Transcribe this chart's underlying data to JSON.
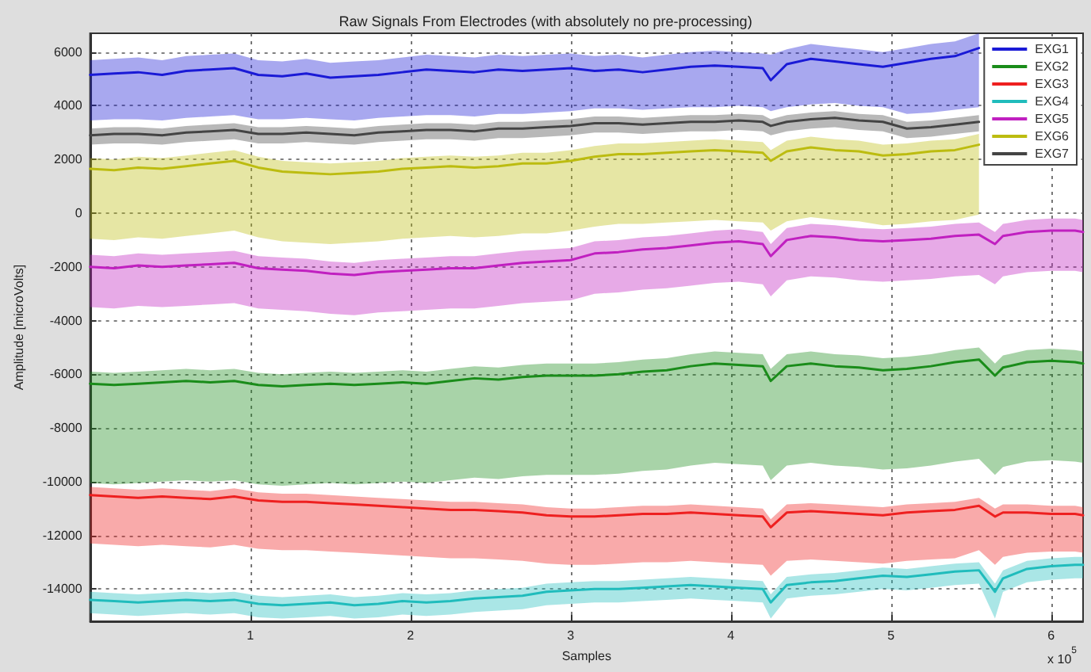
{
  "chart_data": {
    "type": "line",
    "title": "Raw Signals From Electrodes (with absolutely no pre-processing)",
    "xlabel": "Samples",
    "ylabel": "Amplitude [microVolts]",
    "annotations": [
      "x 10$^{5}$"
    ],
    "xlim": [
      0,
      6.2
    ],
    "xticks": [
      1,
      2,
      3,
      4,
      5,
      6
    ],
    "ylim": [
      -15200,
      6700
    ],
    "yticks": [
      -14000,
      -12000,
      -10000,
      -8000,
      -6000,
      -4000,
      -2000,
      0,
      2000,
      4000,
      6000
    ],
    "grid": true,
    "legend": "top right",
    "x": [
      0,
      0.15,
      0.3,
      0.45,
      0.6,
      0.75,
      0.9,
      1.05,
      1.2,
      1.35,
      1.5,
      1.65,
      1.8,
      1.95,
      2.1,
      2.25,
      2.4,
      2.55,
      2.7,
      2.85,
      3,
      3.15,
      3.3,
      3.45,
      3.6,
      3.75,
      3.9,
      4.05,
      4.2,
      4.25,
      4.35,
      4.5,
      4.65,
      4.8,
      4.95,
      5.1,
      5.25,
      5.4,
      5.55,
      5.65,
      5.7,
      5.85,
      6,
      6.15,
      6.2
    ],
    "series": [
      {
        "name": "EXG1",
        "color": "#1a1ad6",
        "values": [
          5150,
          5200,
          5250,
          5150,
          5300,
          5350,
          5400,
          5150,
          5100,
          5200,
          5050,
          5100,
          5150,
          5250,
          5350,
          5300,
          5250,
          5350,
          5300,
          5350,
          5400,
          5300,
          5350,
          5250,
          5350,
          5450,
          5500,
          5450,
          5400,
          4950,
          5550,
          5750,
          5650,
          5550,
          5450,
          5600,
          5750,
          5850,
          6150,
          null,
          null,
          null,
          null,
          null,
          null
        ],
        "upper": [
          5700,
          5750,
          5800,
          5700,
          5850,
          5900,
          5950,
          5700,
          5650,
          5750,
          5600,
          5650,
          5700,
          5800,
          5900,
          5850,
          5800,
          5900,
          5850,
          5900,
          5950,
          5850,
          5900,
          5800,
          5900,
          6000,
          6050,
          6000,
          5950,
          5900,
          6100,
          6300,
          6200,
          6100,
          6000,
          6150,
          6300,
          6400,
          6700,
          null,
          null,
          null,
          null,
          null,
          null
        ],
        "lower": [
          3450,
          3500,
          3500,
          3450,
          3550,
          3600,
          3650,
          3500,
          3500,
          3550,
          3500,
          3450,
          3550,
          3600,
          3650,
          3650,
          3600,
          3700,
          3700,
          3750,
          3800,
          3900,
          3900,
          3850,
          3900,
          3950,
          3950,
          4000,
          3950,
          3800,
          3950,
          4050,
          4100,
          4000,
          3950,
          3700,
          3750,
          3850,
          3950,
          null,
          null,
          null,
          null,
          null,
          null
        ]
      },
      {
        "name": "EXG2",
        "color": "#1a8c1a",
        "values": [
          -6350,
          -6400,
          -6350,
          -6300,
          -6250,
          -6300,
          -6250,
          -6400,
          -6450,
          -6400,
          -6350,
          -6400,
          -6350,
          -6300,
          -6350,
          -6250,
          -6150,
          -6200,
          -6100,
          -6050,
          -6050,
          -6050,
          -6000,
          -5900,
          -5850,
          -5700,
          -5600,
          -5650,
          -5700,
          -6250,
          -5700,
          -5600,
          -5700,
          -5750,
          -5850,
          -5800,
          -5700,
          -5550,
          -5450,
          -6050,
          -5750,
          -5550,
          -5500,
          -5550,
          -5600
        ],
        "upper": [
          -5900,
          -5950,
          -5900,
          -5850,
          -5800,
          -5850,
          -5800,
          -5950,
          -6000,
          -5950,
          -5900,
          -5950,
          -5900,
          -5850,
          -5900,
          -5800,
          -5700,
          -5750,
          -5650,
          -5600,
          -5600,
          -5600,
          -5550,
          -5450,
          -5400,
          -5250,
          -5150,
          -5200,
          -5250,
          -5800,
          -5250,
          -5150,
          -5250,
          -5300,
          -5400,
          -5350,
          -5250,
          -5100,
          -5000,
          -5600,
          -5300,
          -5100,
          -5050,
          -5100,
          -5150
        ],
        "lower": [
          -10050,
          -10100,
          -10050,
          -10000,
          -9950,
          -10000,
          -9950,
          -10100,
          -10150,
          -10100,
          -10050,
          -10100,
          -10050,
          -10000,
          -10050,
          -9950,
          -9850,
          -9900,
          -9800,
          -9750,
          -9750,
          -9750,
          -9700,
          -9600,
          -9550,
          -9400,
          -9300,
          -9350,
          -9400,
          -9950,
          -9400,
          -9300,
          -9400,
          -9450,
          -9550,
          -9500,
          -9400,
          -9250,
          -9150,
          -9750,
          -9450,
          -9250,
          -9200,
          -9250,
          -9300
        ]
      },
      {
        "name": "EXG3",
        "color": "#ee2020",
        "values": [
          -10500,
          -10550,
          -10600,
          -10550,
          -10600,
          -10650,
          -10550,
          -10700,
          -10750,
          -10750,
          -10800,
          -10850,
          -10900,
          -10950,
          -11000,
          -11050,
          -11050,
          -11100,
          -11150,
          -11250,
          -11300,
          -11300,
          -11250,
          -11200,
          -11200,
          -11150,
          -11200,
          -11250,
          -11300,
          -11700,
          -11150,
          -11100,
          -11150,
          -11200,
          -11250,
          -11150,
          -11100,
          -11050,
          -10900,
          -11300,
          -11150,
          -11150,
          -11200,
          -11200,
          -11250
        ],
        "upper": [
          -10200,
          -10250,
          -10300,
          -10250,
          -10300,
          -10350,
          -10250,
          -10400,
          -10450,
          -10450,
          -10500,
          -10550,
          -10600,
          -10650,
          -10700,
          -10750,
          -10750,
          -10800,
          -10850,
          -10950,
          -11000,
          -11000,
          -10950,
          -10900,
          -10900,
          -10850,
          -10900,
          -10950,
          -11000,
          -11400,
          -10850,
          -10800,
          -10850,
          -10900,
          -10950,
          -10850,
          -10800,
          -10750,
          -10600,
          -11000,
          -10850,
          -10850,
          -10900,
          -10900,
          -10950
        ],
        "lower": [
          -12300,
          -12350,
          -12400,
          -12350,
          -12400,
          -12450,
          -12350,
          -12500,
          -12550,
          -12550,
          -12600,
          -12650,
          -12700,
          -12750,
          -12800,
          -12850,
          -12850,
          -12900,
          -12950,
          -13050,
          -13100,
          -13100,
          -13050,
          -13000,
          -13000,
          -12950,
          -13000,
          -13050,
          -13100,
          -13500,
          -12950,
          -12900,
          -12950,
          -13000,
          -13050,
          -12950,
          -12900,
          -12850,
          -12550,
          -13100,
          -12800,
          -12650,
          -12600,
          -12600,
          -12650
        ]
      },
      {
        "name": "EXG4",
        "color": "#20bcbc",
        "values": [
          -14400,
          -14450,
          -14500,
          -14450,
          -14400,
          -14450,
          -14400,
          -14550,
          -14600,
          -14550,
          -14500,
          -14600,
          -14550,
          -14450,
          -14500,
          -14450,
          -14350,
          -14300,
          -14250,
          -14100,
          -14050,
          -14000,
          -14000,
          -13950,
          -13900,
          -13850,
          -13900,
          -13950,
          -14000,
          -14500,
          -13850,
          -13750,
          -13700,
          -13600,
          -13500,
          -13550,
          -13450,
          -13350,
          -13300,
          -14100,
          -13600,
          -13250,
          -13150,
          -13100,
          -13100
        ],
        "upper": [
          -14100,
          -14150,
          -14200,
          -14150,
          -14100,
          -14150,
          -14100,
          -14250,
          -14300,
          -14250,
          -14200,
          -14300,
          -14250,
          -14150,
          -14200,
          -14150,
          -14050,
          -14000,
          -13950,
          -13800,
          -13750,
          -13700,
          -13700,
          -13650,
          -13600,
          -13550,
          -13600,
          -13650,
          -13700,
          -14200,
          -13550,
          -13450,
          -13400,
          -13300,
          -13200,
          -13250,
          -13150,
          -13050,
          -13000,
          -13800,
          -13300,
          -12950,
          -12850,
          -12800,
          -12800
        ],
        "lower": [
          -14900,
          -14950,
          -15000,
          -14950,
          -14900,
          -14950,
          -14900,
          -15050,
          -15100,
          -15050,
          -15000,
          -15100,
          -15050,
          -14950,
          -15000,
          -14950,
          -14850,
          -14800,
          -14750,
          -14600,
          -14550,
          -14500,
          -14500,
          -14450,
          -14400,
          -14350,
          -14400,
          -14450,
          -14500,
          -15100,
          -14350,
          -14250,
          -14200,
          -14100,
          -14000,
          -14050,
          -13950,
          -13850,
          -13800,
          -15100,
          -14100,
          -13750,
          -13650,
          -13600,
          -13600
        ]
      },
      {
        "name": "EXG5",
        "color": "#c020c0",
        "values": [
          -2000,
          -2050,
          -1950,
          -2000,
          -1950,
          -1900,
          -1850,
          -2050,
          -2100,
          -2150,
          -2250,
          -2300,
          -2200,
          -2150,
          -2100,
          -2050,
          -2050,
          -1950,
          -1850,
          -1800,
          -1750,
          -1500,
          -1450,
          -1350,
          -1300,
          -1200,
          -1100,
          -1050,
          -1150,
          -1600,
          -1000,
          -850,
          -900,
          -1000,
          -1050,
          -1000,
          -950,
          -850,
          -800,
          -1150,
          -850,
          -700,
          -650,
          -650,
          -700
        ],
        "upper": [
          -1550,
          -1600,
          -1500,
          -1550,
          -1500,
          -1450,
          -1400,
          -1600,
          -1650,
          -1700,
          -1800,
          -1850,
          -1750,
          -1700,
          -1650,
          -1600,
          -1600,
          -1500,
          -1400,
          -1350,
          -1300,
          -1050,
          -1000,
          -900,
          -850,
          -750,
          -650,
          -600,
          -700,
          -1150,
          -550,
          -400,
          -450,
          -550,
          -600,
          -550,
          -500,
          -400,
          -350,
          -700,
          -400,
          -250,
          -200,
          -200,
          -250
        ],
        "lower": [
          -3500,
          -3550,
          -3450,
          -3500,
          -3450,
          -3400,
          -3350,
          -3550,
          -3600,
          -3650,
          -3750,
          -3800,
          -3700,
          -3650,
          -3600,
          -3550,
          -3550,
          -3450,
          -3350,
          -3300,
          -3250,
          -3000,
          -2950,
          -2850,
          -2800,
          -2700,
          -2600,
          -2550,
          -2650,
          -3100,
          -2500,
          -2350,
          -2400,
          -2500,
          -2550,
          -2500,
          -2450,
          -2350,
          -2300,
          -2650,
          -2350,
          -2200,
          -2150,
          -2150,
          -2200
        ]
      },
      {
        "name": "EXG6",
        "color": "#bcbc10",
        "values": [
          1650,
          1600,
          1700,
          1650,
          1750,
          1850,
          1950,
          1700,
          1550,
          1500,
          1450,
          1500,
          1550,
          1650,
          1700,
          1750,
          1700,
          1750,
          1850,
          1850,
          1950,
          2100,
          2200,
          2200,
          2250,
          2300,
          2350,
          2300,
          2250,
          1950,
          2300,
          2450,
          2350,
          2300,
          2150,
          2200,
          2300,
          2350,
          2550,
          null,
          null,
          null,
          null,
          null,
          null
        ],
        "upper": [
          2050,
          2000,
          2100,
          2050,
          2150,
          2250,
          2350,
          2100,
          1950,
          1900,
          1850,
          1900,
          1950,
          2050,
          2100,
          2150,
          2100,
          2150,
          2250,
          2250,
          2350,
          2500,
          2600,
          2600,
          2650,
          2700,
          2750,
          2700,
          2650,
          2350,
          2700,
          2850,
          2750,
          2700,
          2550,
          2600,
          2700,
          2750,
          2950,
          null,
          null,
          null,
          null,
          null,
          null
        ],
        "lower": [
          -950,
          -1000,
          -900,
          -950,
          -850,
          -750,
          -650,
          -900,
          -1050,
          -1100,
          -1150,
          -1100,
          -1050,
          -950,
          -900,
          -850,
          -900,
          -850,
          -750,
          -750,
          -650,
          -500,
          -400,
          -400,
          -350,
          -300,
          -250,
          -300,
          -350,
          -650,
          -300,
          -150,
          -250,
          -300,
          -450,
          -400,
          -300,
          -250,
          -50,
          null,
          null,
          null,
          null,
          null,
          null
        ]
      },
      {
        "name": "EXG7",
        "color": "#444444",
        "values": [
          2900,
          2950,
          2950,
          2900,
          3000,
          3050,
          3100,
          2950,
          2950,
          3000,
          2950,
          2900,
          3000,
          3050,
          3100,
          3100,
          3050,
          3150,
          3150,
          3200,
          3250,
          3350,
          3350,
          3300,
          3350,
          3400,
          3400,
          3450,
          3400,
          3250,
          3400,
          3500,
          3550,
          3450,
          3400,
          3150,
          3200,
          3300,
          3400,
          null,
          null,
          null,
          null,
          null,
          null
        ],
        "upper": [
          3150,
          3200,
          3200,
          3150,
          3250,
          3300,
          3350,
          3200,
          3200,
          3250,
          3200,
          3150,
          3250,
          3300,
          3350,
          3350,
          3300,
          3400,
          3400,
          3450,
          3500,
          3600,
          3600,
          3550,
          3600,
          3650,
          3650,
          3700,
          3650,
          3500,
          3650,
          3750,
          3800,
          3700,
          3650,
          3400,
          3450,
          3550,
          3650,
          null,
          null,
          null,
          null,
          null,
          null
        ],
        "lower": [
          2550,
          2600,
          2600,
          2550,
          2650,
          2700,
          2750,
          2600,
          2600,
          2650,
          2600,
          2550,
          2650,
          2700,
          2750,
          2750,
          2700,
          2800,
          2800,
          2850,
          2900,
          3000,
          3000,
          2950,
          3000,
          3050,
          3050,
          3100,
          3050,
          2900,
          3050,
          3150,
          3200,
          3100,
          3050,
          2800,
          2850,
          2950,
          3050,
          null,
          null,
          null,
          null,
          null,
          null
        ]
      }
    ]
  }
}
